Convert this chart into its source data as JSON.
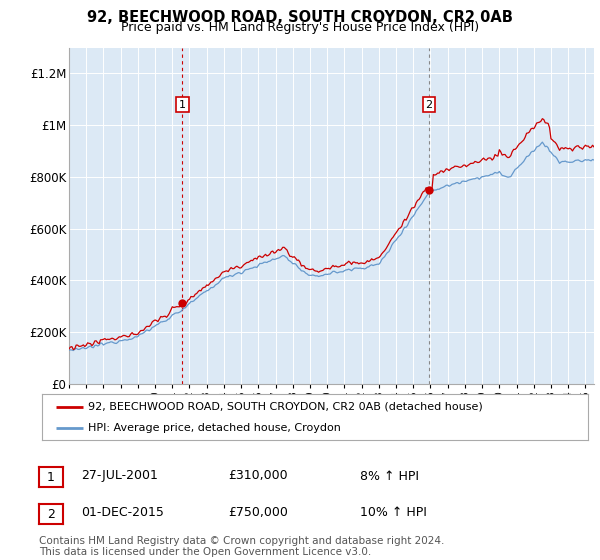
{
  "title": "92, BEECHWOOD ROAD, SOUTH CROYDON, CR2 0AB",
  "subtitle": "Price paid vs. HM Land Registry's House Price Index (HPI)",
  "plot_bg_color": "#dce9f5",
  "grid_color": "#ffffff",
  "ylim": [
    0,
    1300000
  ],
  "yticks": [
    0,
    200000,
    400000,
    600000,
    800000,
    1000000,
    1200000
  ],
  "ytick_labels": [
    "£0",
    "£200K",
    "£400K",
    "£600K",
    "£800K",
    "£1M",
    "£1.2M"
  ],
  "sale1_date": 2001.58,
  "sale1_price": 310000,
  "sale1_label": "1",
  "sale2_date": 2015.92,
  "sale2_price": 750000,
  "sale2_label": "2",
  "legend_line1": "92, BEECHWOOD ROAD, SOUTH CROYDON, CR2 0AB (detached house)",
  "legend_line2": "HPI: Average price, detached house, Croydon",
  "table_row1": [
    "1",
    "27-JUL-2001",
    "£310,000",
    "8% ↑ HPI"
  ],
  "table_row2": [
    "2",
    "01-DEC-2015",
    "£750,000",
    "10% ↑ HPI"
  ],
  "footnote": "Contains HM Land Registry data © Crown copyright and database right 2024.\nThis data is licensed under the Open Government Licence v3.0.",
  "house_color": "#cc0000",
  "hpi_color": "#6699cc",
  "vline_color": "#cc0000",
  "sale_dot_color": "#cc0000",
  "xstart": 1995,
  "xend": 2025.5
}
